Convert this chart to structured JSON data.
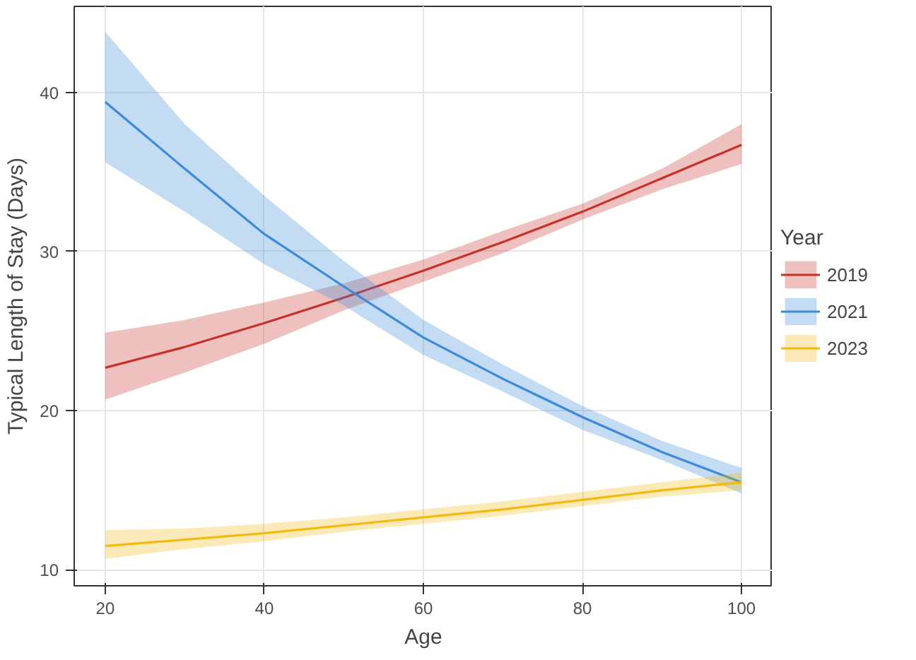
{
  "chart_data": {
    "type": "line",
    "xlabel": "Age",
    "ylabel": "Typical Length of Stay (Days)",
    "legend_title": "Year",
    "x": [
      20,
      30,
      40,
      50,
      60,
      70,
      80,
      90,
      100
    ],
    "series": [
      {
        "name": "2019",
        "color": "#c8312a",
        "values": [
          22.7,
          24.0,
          25.5,
          27.1,
          28.8,
          30.6,
          32.5,
          34.6,
          36.7
        ],
        "lower": [
          20.7,
          22.4,
          24.2,
          26.3,
          28.1,
          29.9,
          32.0,
          33.9,
          35.5
        ],
        "upper": [
          24.9,
          25.7,
          26.8,
          28.0,
          29.5,
          31.3,
          33.0,
          35.2,
          38.0
        ]
      },
      {
        "name": "2021",
        "color": "#3d8ad8",
        "values": [
          39.4,
          35.2,
          31.1,
          27.8,
          24.6,
          22.0,
          19.6,
          17.4,
          15.5
        ],
        "lower": [
          35.6,
          32.5,
          29.2,
          26.6,
          23.5,
          21.2,
          18.8,
          16.9,
          14.8
        ],
        "upper": [
          43.8,
          38.0,
          33.5,
          29.4,
          25.7,
          22.9,
          20.3,
          18.1,
          16.4
        ]
      },
      {
        "name": "2023",
        "color": "#f2b90f",
        "values": [
          11.5,
          11.9,
          12.3,
          12.8,
          13.3,
          13.8,
          14.4,
          15.0,
          15.5
        ],
        "lower": [
          10.7,
          11.3,
          11.8,
          12.4,
          12.9,
          13.4,
          14.0,
          14.6,
          15.0
        ],
        "upper": [
          12.5,
          12.6,
          12.9,
          13.3,
          13.8,
          14.3,
          14.9,
          15.5,
          16.1
        ]
      }
    ],
    "xlim": [
      16.1,
      103.9
    ],
    "ylim": [
      9.0,
      45.4
    ],
    "xticks": [
      20,
      40,
      60,
      80,
      100
    ],
    "yticks": [
      10,
      20,
      30,
      40
    ],
    "grid": true,
    "legend": "right",
    "marker": "none",
    "line_style": "solid"
  }
}
